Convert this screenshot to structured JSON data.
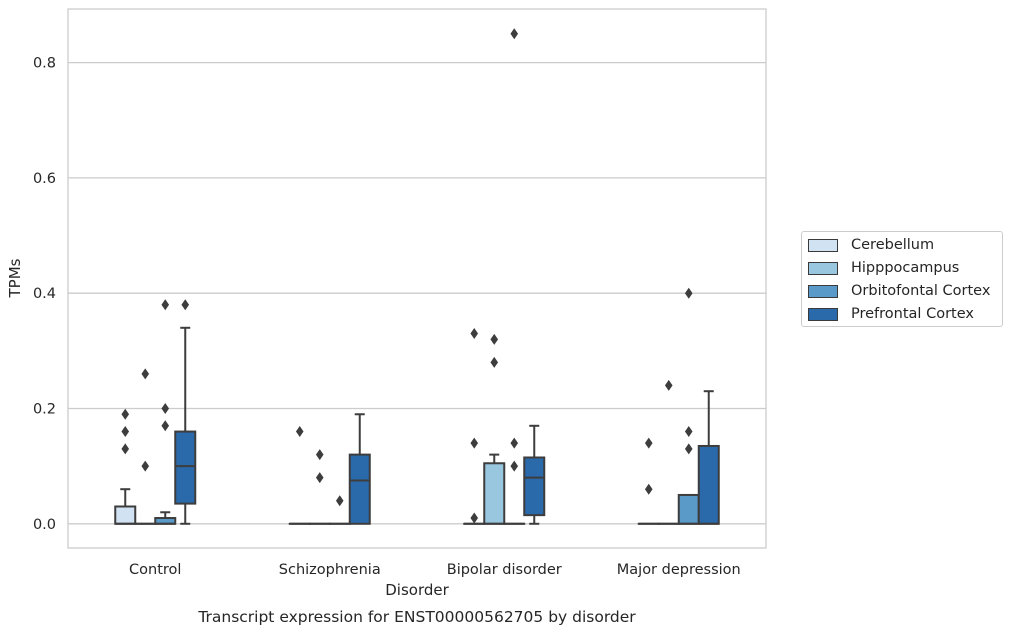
{
  "chart_data": {
    "type": "box",
    "caption": "Transcript expression for ENST00000562705 by disorder",
    "xlabel": "Disorder",
    "ylabel": "TPMs",
    "ylim": [
      -0.042,
      0.893
    ],
    "yticks": [
      0.0,
      0.2,
      0.4,
      0.6,
      0.8
    ],
    "ytick_labels": [
      "0.0",
      "0.2",
      "0.4",
      "0.6",
      "0.8"
    ],
    "grid": "horizontal",
    "legend_position": "right",
    "categories": [
      "Control",
      "Schizophrenia",
      "Bipolar disorder",
      "Major depression"
    ],
    "series": [
      {
        "name": "Cerebellum",
        "color": "#d1e2f2",
        "boxes": [
          {
            "q1": 0.0,
            "median": 0.0,
            "q3": 0.03,
            "whislo": 0.0,
            "whishi": 0.06,
            "fliers": [
              0.13,
              0.16,
              0.19
            ]
          },
          {
            "q1": 0.0,
            "median": 0.0,
            "q3": 0.0,
            "whislo": 0.0,
            "whishi": 0.0,
            "fliers": [
              0.16
            ]
          },
          {
            "q1": 0.0,
            "median": 0.0,
            "q3": 0.0,
            "whislo": 0.0,
            "whishi": 0.0,
            "fliers": [
              0.01,
              0.14,
              0.33
            ]
          },
          {
            "q1": 0.0,
            "median": 0.0,
            "q3": 0.0,
            "whislo": 0.0,
            "whishi": 0.0,
            "fliers": [
              0.06,
              0.14
            ]
          }
        ]
      },
      {
        "name": "Hipppocampus",
        "color": "#9ac7e0",
        "boxes": [
          {
            "q1": 0.0,
            "median": 0.0,
            "q3": 0.0,
            "whislo": 0.0,
            "whishi": 0.0,
            "fliers": [
              0.1,
              0.26
            ]
          },
          {
            "q1": 0.0,
            "median": 0.0,
            "q3": 0.0,
            "whislo": 0.0,
            "whishi": 0.0,
            "fliers": [
              0.08,
              0.12
            ]
          },
          {
            "q1": 0.0,
            "median": 0.0,
            "q3": 0.105,
            "whislo": 0.0,
            "whishi": 0.12,
            "fliers": [
              0.28,
              0.32
            ]
          },
          {
            "q1": 0.0,
            "median": 0.0,
            "q3": 0.0,
            "whislo": 0.0,
            "whishi": 0.0,
            "fliers": [
              0.24
            ]
          }
        ]
      },
      {
        "name": "Orbitofontal Cortex",
        "color": "#5a9ac8",
        "boxes": [
          {
            "q1": 0.0,
            "median": 0.0,
            "q3": 0.01,
            "whislo": 0.0,
            "whishi": 0.02,
            "fliers": [
              0.17,
              0.2,
              0.38
            ]
          },
          {
            "q1": 0.0,
            "median": 0.0,
            "q3": 0.0,
            "whislo": 0.0,
            "whishi": 0.0,
            "fliers": [
              0.04
            ]
          },
          {
            "q1": 0.0,
            "median": 0.0,
            "q3": 0.0,
            "whislo": 0.0,
            "whishi": 0.0,
            "fliers": [
              0.1,
              0.14,
              0.85
            ]
          },
          {
            "q1": 0.0,
            "median": 0.0,
            "q3": 0.05,
            "whislo": 0.0,
            "whishi": 0.05,
            "fliers": [
              0.13,
              0.16,
              0.4
            ]
          }
        ]
      },
      {
        "name": "Prefrontal Cortex",
        "color": "#2a6aab",
        "boxes": [
          {
            "q1": 0.035,
            "median": 0.1,
            "q3": 0.16,
            "whislo": 0.0,
            "whishi": 0.34,
            "fliers": [
              0.38
            ]
          },
          {
            "q1": 0.0,
            "median": 0.075,
            "q3": 0.12,
            "whislo": 0.0,
            "whishi": 0.19,
            "fliers": []
          },
          {
            "q1": 0.015,
            "median": 0.08,
            "q3": 0.115,
            "whislo": 0.0,
            "whishi": 0.17,
            "fliers": []
          },
          {
            "q1": 0.0,
            "median": 0.0,
            "q3": 0.135,
            "whislo": 0.0,
            "whishi": 0.23,
            "fliers": []
          }
        ]
      }
    ]
  }
}
